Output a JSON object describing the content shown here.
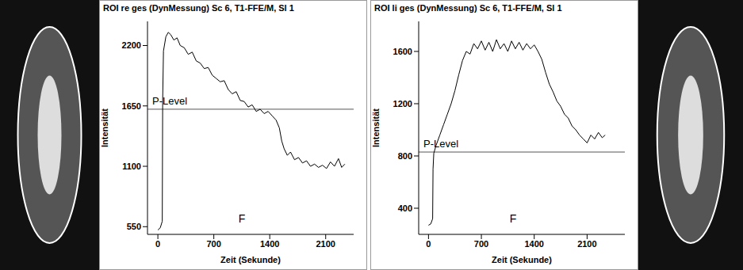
{
  "chart_data": [
    {
      "type": "line",
      "title": "ROI re ges (DynMessung) Sc 6, T1-FFE/M, Sl 1",
      "x_label": "Zeit (Sekunde)",
      "y_label": "Intensität",
      "x": [
        0,
        30,
        55,
        60,
        70,
        100,
        130,
        160,
        200,
        240,
        280,
        330,
        380,
        430,
        480,
        530,
        580,
        630,
        680,
        730,
        780,
        830,
        880,
        930,
        980,
        1030,
        1080,
        1130,
        1180,
        1230,
        1280,
        1330,
        1380,
        1430,
        1480,
        1520,
        1550,
        1580,
        1620,
        1660,
        1710,
        1760,
        1810,
        1860,
        1910,
        1960,
        2010,
        2060,
        2110,
        2160,
        2210,
        2260,
        2300,
        2340
      ],
      "values": [
        520,
        540,
        600,
        1700,
        2150,
        2280,
        2320,
        2300,
        2250,
        2270,
        2200,
        2180,
        2120,
        2140,
        2060,
        2040,
        1990,
        2000,
        1930,
        1900,
        1870,
        1880,
        1800,
        1760,
        1780,
        1700,
        1690,
        1640,
        1660,
        1600,
        1620,
        1580,
        1600,
        1560,
        1520,
        1450,
        1330,
        1260,
        1200,
        1230,
        1160,
        1180,
        1130,
        1150,
        1100,
        1120,
        1090,
        1110,
        1080,
        1140,
        1100,
        1170,
        1090,
        1120
      ],
      "color": "#000000",
      "xlim": [
        -130,
        2450
      ],
      "ylim": [
        480,
        2420
      ],
      "xticks": [
        0,
        700,
        1400,
        2100
      ],
      "yticks": [
        550,
        1100,
        1650,
        2200
      ],
      "grid": false,
      "p_level": {
        "label": "P-Level",
        "value": 1620
      },
      "annotations": [
        "F"
      ]
    },
    {
      "type": "line",
      "title": "ROI li ges (DynMessung) Sc 6, T1-FFE/M, Sl 1",
      "x_label": "Zeit (Sekunde)",
      "y_label": "Intensität",
      "x": [
        0,
        30,
        55,
        60,
        70,
        100,
        150,
        200,
        250,
        300,
        350,
        400,
        450,
        500,
        550,
        600,
        650,
        700,
        750,
        800,
        850,
        900,
        950,
        1000,
        1050,
        1100,
        1150,
        1200,
        1250,
        1300,
        1350,
        1400,
        1450,
        1500,
        1550,
        1600,
        1650,
        1700,
        1750,
        1800,
        1850,
        1900,
        1950,
        2000,
        2050,
        2100,
        2150,
        2200,
        2250,
        2300,
        2340
      ],
      "values": [
        270,
        280,
        320,
        700,
        820,
        880,
        960,
        1040,
        1120,
        1200,
        1300,
        1420,
        1530,
        1600,
        1580,
        1660,
        1620,
        1680,
        1610,
        1670,
        1600,
        1690,
        1620,
        1660,
        1600,
        1680,
        1620,
        1670,
        1610,
        1660,
        1620,
        1650,
        1600,
        1540,
        1440,
        1350,
        1290,
        1220,
        1180,
        1120,
        1090,
        1030,
        1000,
        960,
        930,
        900,
        960,
        930,
        980,
        940,
        960
      ],
      "color": "#000000",
      "xlim": [
        -130,
        2600
      ],
      "ylim": [
        200,
        1830
      ],
      "xticks": [
        0,
        700,
        1400,
        2100
      ],
      "yticks": [
        400,
        800,
        1200,
        1600
      ],
      "grid": false,
      "p_level": {
        "label": "P-Level",
        "value": 830
      },
      "annotations": [
        "F"
      ]
    }
  ]
}
